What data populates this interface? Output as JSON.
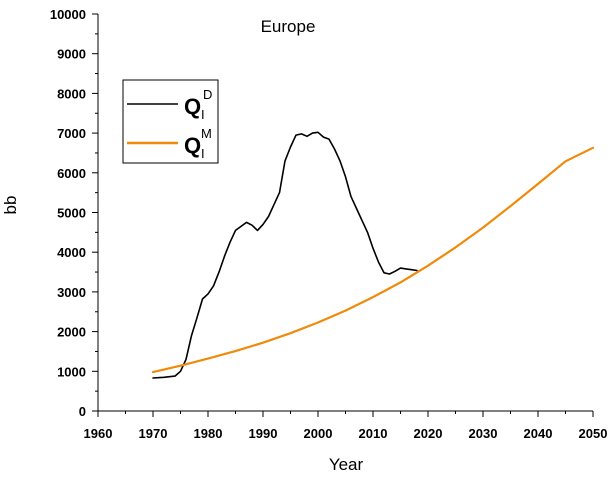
{
  "chart_data": {
    "type": "line",
    "title": "Europe",
    "xlabel": "Year",
    "ylabel": "bb",
    "xlim": [
      1960,
      2050
    ],
    "ylim": [
      0,
      10000
    ],
    "x_ticks": [
      1960,
      1970,
      1980,
      1990,
      2000,
      2010,
      2020,
      2030,
      2040,
      2050
    ],
    "y_ticks": [
      0,
      1000,
      2000,
      3000,
      4000,
      5000,
      6000,
      7000,
      8000,
      9000,
      10000
    ],
    "grid": false,
    "legend_position": "top-left",
    "series": [
      {
        "name": "Q_I^D",
        "legend_main": "Q",
        "legend_sub": "I",
        "legend_sup": "D",
        "color": "#000000",
        "x": [
          1970,
          1972,
          1974,
          1975,
          1976,
          1977,
          1978,
          1979,
          1980,
          1981,
          1982,
          1983,
          1984,
          1985,
          1986,
          1987,
          1988,
          1989,
          1990,
          1991,
          1992,
          1993,
          1994,
          1995,
          1996,
          1997,
          1998,
          1999,
          2000,
          2001,
          2002,
          2003,
          2004,
          2005,
          2006,
          2007,
          2008,
          2009,
          2010,
          2011,
          2012,
          2013,
          2014,
          2015,
          2016,
          2017,
          2018
        ],
        "y": [
          830,
          850,
          880,
          1000,
          1300,
          1900,
          2350,
          2820,
          2950,
          3150,
          3500,
          3900,
          4250,
          4550,
          4650,
          4750,
          4680,
          4550,
          4700,
          4900,
          5200,
          5500,
          6300,
          6650,
          6950,
          6980,
          6920,
          7000,
          7020,
          6900,
          6850,
          6600,
          6300,
          5900,
          5400,
          5100,
          4800,
          4500,
          4100,
          3750,
          3480,
          3450,
          3520,
          3600,
          3580,
          3560,
          3540
        ]
      },
      {
        "name": "Q_I^M",
        "legend_main": "Q",
        "legend_sub": "I",
        "legend_sup": "M",
        "color": "#f08a0a",
        "x": [
          1970,
          1975,
          1980,
          1985,
          1990,
          1995,
          2000,
          2005,
          2010,
          2015,
          2020,
          2025,
          2030,
          2035,
          2040,
          2045,
          2050
        ],
        "y": [
          980,
          1140,
          1320,
          1510,
          1720,
          1960,
          2230,
          2530,
          2870,
          3240,
          3660,
          4120,
          4620,
          5160,
          5720,
          6290,
          6630
        ]
      }
    ]
  }
}
